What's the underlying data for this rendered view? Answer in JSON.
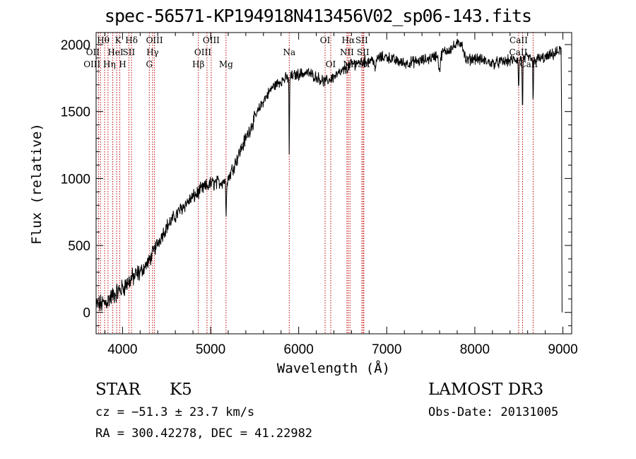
{
  "title": "spec-56571-KP194918N413456V02_sp06-143.fits",
  "info": {
    "class_label": "STAR",
    "subclass": "K5",
    "survey": "LAMOST DR3",
    "cz": "cz = −51.3 ± 23.7 km/s",
    "obs_date": "Obs-Date: 20131005",
    "radec": "RA = 300.42278, DEC =  41.22982"
  },
  "chart_data": {
    "type": "line",
    "title": "spec-56571-KP194918N413456V02_sp06-143.fits",
    "xlabel": "Wavelength (Å)",
    "ylabel": "Flux (relative)",
    "xlim": [
      3700,
      9100
    ],
    "ylim": [
      -160,
      2090
    ],
    "xticks": [
      4000,
      5000,
      6000,
      7000,
      8000,
      9000
    ],
    "yticks": [
      0,
      500,
      1000,
      1500,
      2000
    ],
    "continuum": {
      "x": [
        3700,
        3800,
        3900,
        4000,
        4100,
        4200,
        4300,
        4400,
        4500,
        4600,
        4700,
        4800,
        4900,
        5000,
        5100,
        5200,
        5300,
        5400,
        5500,
        5600,
        5700,
        5800,
        5900,
        6000,
        6100,
        6200,
        6300,
        6400,
        6500,
        6600,
        6700,
        6800,
        6900,
        7000,
        7100,
        7200,
        7300,
        7400,
        7500,
        7600,
        7700,
        7800,
        7850,
        7900,
        8000,
        8100,
        8200,
        8300,
        8400,
        8500,
        8600,
        8700,
        8800,
        8900,
        8980
      ],
      "y": [
        50,
        70,
        130,
        180,
        250,
        300,
        380,
        520,
        640,
        720,
        800,
        860,
        920,
        960,
        970,
        1000,
        1150,
        1300,
        1450,
        1580,
        1680,
        1730,
        1760,
        1780,
        1790,
        1760,
        1720,
        1760,
        1800,
        1850,
        1870,
        1880,
        1900,
        1910,
        1880,
        1860,
        1870,
        1880,
        1900,
        1930,
        1960,
        2000,
        2020,
        1880,
        1900,
        1880,
        1860,
        1870,
        1880,
        1890,
        1900,
        1890,
        1900,
        1930,
        1960
      ]
    },
    "absorption": [
      {
        "x": 5893,
        "depth": 620,
        "width": 4
      },
      {
        "x": 5175,
        "depth": 250,
        "width": 6
      },
      {
        "x": 8498,
        "depth": 250,
        "width": 5
      },
      {
        "x": 8542,
        "depth": 420,
        "width": 5
      },
      {
        "x": 8662,
        "depth": 350,
        "width": 5
      },
      {
        "x": 7600,
        "depth": 120,
        "width": 15
      },
      {
        "x": 6870,
        "depth": 100,
        "width": 10
      }
    ],
    "end_points": [
      {
        "x": 8985,
        "y": 1480
      },
      {
        "x": 8988,
        "y": 500
      },
      {
        "x": 8991,
        "y": 0
      }
    ],
    "line_markers": [
      {
        "x": 3727,
        "label": "OII",
        "row": 1,
        "dx": -8
      },
      {
        "x": 3750,
        "label": "OIII",
        "row": 2,
        "dx": -12
      },
      {
        "x": 3797,
        "label": "Hθ",
        "row": 0,
        "dx": -2
      },
      {
        "x": 3835,
        "label": "Hη",
        "row": 2,
        "dx": 2
      },
      {
        "x": 3889,
        "label": "HeI",
        "row": 1,
        "dx": 4
      },
      {
        "x": 3934,
        "label": "K",
        "row": 0,
        "dx": 2
      },
      {
        "x": 3969,
        "label": "H",
        "row": 2,
        "dx": 4
      },
      {
        "x": 4072,
        "label": "SII",
        "row": 1,
        "dx": 0
      },
      {
        "x": 4102,
        "label": "Hδ",
        "row": 0,
        "dx": 0
      },
      {
        "x": 4304,
        "label": "G",
        "row": 2,
        "dx": 0
      },
      {
        "x": 4341,
        "label": "Hγ",
        "row": 1,
        "dx": 0
      },
      {
        "x": 4363,
        "label": "OIII",
        "row": 0,
        "dx": 0
      },
      {
        "x": 4861,
        "label": "Hβ",
        "row": 2,
        "dx": 0
      },
      {
        "x": 4959,
        "label": "OIII",
        "row": 1,
        "dx": -6
      },
      {
        "x": 5007,
        "label": "OIII",
        "row": 0,
        "dx": 0
      },
      {
        "x": 5175,
        "label": "Mg",
        "row": 2,
        "dx": 0
      },
      {
        "x": 5893,
        "label": "Na",
        "row": 1,
        "dx": 0
      },
      {
        "x": 6300,
        "label": "OI",
        "row": 0,
        "dx": 0
      },
      {
        "x": 6364,
        "label": "OI",
        "row": 2,
        "dx": 0
      },
      {
        "x": 6548,
        "label": "NII",
        "row": 1,
        "dx": 0
      },
      {
        "x": 6563,
        "label": "Hα",
        "row": 0,
        "dx": 0
      },
      {
        "x": 6583,
        "label": "NII",
        "row": 2,
        "dx": 0
      },
      {
        "x": 6716,
        "label": "SII",
        "row": 0,
        "dx": 0
      },
      {
        "x": 6731,
        "label": "SII",
        "row": 1,
        "dx": 0
      },
      {
        "x": 6740,
        "label": "SII",
        "row": 2,
        "dx": 0
      },
      {
        "x": 8498,
        "label": "CaII",
        "row": 0,
        "dx": 0
      },
      {
        "x": 8542,
        "label": "CaII",
        "row": 1,
        "dx": -6
      },
      {
        "x": 8662,
        "label": "CaII",
        "row": 2,
        "dx": -6
      }
    ]
  }
}
